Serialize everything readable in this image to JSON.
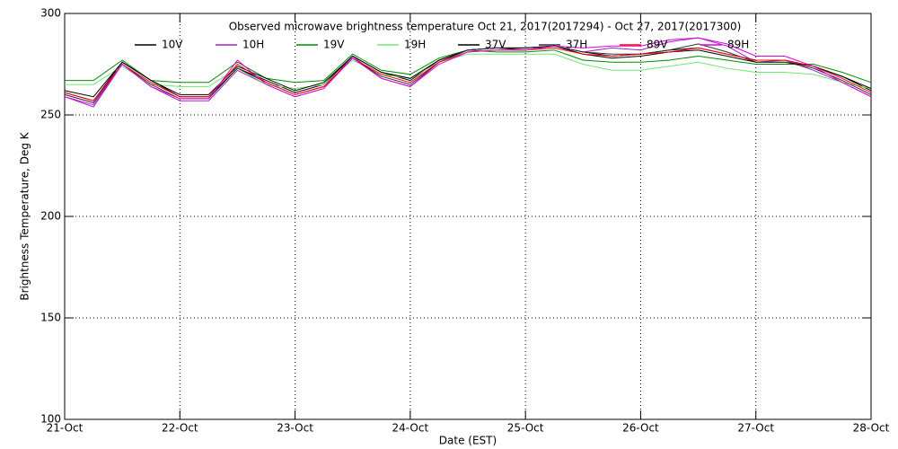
{
  "chart_data": {
    "type": "line",
    "title": "Observed microwave brightness temperature Oct 21, 2017(2017294) - Oct 27, 2017(2017300)",
    "x_label": "Date (EST)",
    "y_label": "Brightness Temperature, Deg K",
    "x": [
      "2017-10-21T00:00",
      "2017-10-21T06:00",
      "2017-10-21T12:00",
      "2017-10-21T18:00",
      "2017-10-22T00:00",
      "2017-10-22T06:00",
      "2017-10-22T12:00",
      "2017-10-22T18:00",
      "2017-10-23T00:00",
      "2017-10-23T06:00",
      "2017-10-23T12:00",
      "2017-10-23T18:00",
      "2017-10-24T00:00",
      "2017-10-24T06:00",
      "2017-10-24T12:00",
      "2017-10-24T18:00",
      "2017-10-25T00:00",
      "2017-10-25T06:00",
      "2017-10-25T12:00",
      "2017-10-25T18:00",
      "2017-10-26T00:00",
      "2017-10-26T06:00",
      "2017-10-26T12:00",
      "2017-10-26T18:00",
      "2017-10-27T00:00",
      "2017-10-27T06:00",
      "2017-10-27T12:00",
      "2017-10-27T18:00",
      "2017-10-28T00:00"
    ],
    "xlim": [
      "2017-10-21",
      "2017-10-28"
    ],
    "xticks": [
      {
        "value": "2017-10-21",
        "label": "21-Oct"
      },
      {
        "value": "2017-10-22",
        "label": "22-Oct"
      },
      {
        "value": "2017-10-23",
        "label": "23-Oct"
      },
      {
        "value": "2017-10-24",
        "label": "24-Oct"
      },
      {
        "value": "2017-10-25",
        "label": "25-Oct"
      },
      {
        "value": "2017-10-26",
        "label": "26-Oct"
      },
      {
        "value": "2017-10-27",
        "label": "27-Oct"
      },
      {
        "value": "2017-10-28",
        "label": "28-Oct"
      }
    ],
    "ylim": [
      100,
      300
    ],
    "yticks": [
      100,
      150,
      200,
      250,
      300
    ],
    "grid": true,
    "series": [
      {
        "name": "10V",
        "color": "#000000",
        "values": [
          261,
          257,
          276,
          267,
          259,
          259,
          273,
          267,
          261,
          265,
          279,
          271,
          267,
          277,
          282,
          283,
          283,
          284,
          281,
          279,
          280,
          282,
          283,
          280,
          277,
          277,
          274,
          269,
          262
        ]
      },
      {
        "name": "10H",
        "color": "#a020c0",
        "values": [
          259,
          254,
          275,
          264,
          257,
          257,
          272,
          265,
          259,
          263,
          279,
          268,
          264,
          276,
          282,
          283,
          282,
          284,
          281,
          283,
          282,
          286,
          288,
          284,
          276,
          277,
          272,
          266,
          259
        ]
      },
      {
        "name": "19V",
        "color": "#008c00",
        "values": [
          267,
          267,
          277,
          267,
          266,
          266,
          276,
          268,
          266,
          267,
          280,
          272,
          270,
          278,
          282,
          281,
          281,
          282,
          277,
          276,
          276,
          277,
          279,
          277,
          275,
          275,
          275,
          271,
          266
        ]
      },
      {
        "name": "19H",
        "color": "#70e870",
        "values": [
          265,
          265,
          274,
          265,
          264,
          264,
          273,
          265,
          263,
          265,
          277,
          270,
          268,
          276,
          280,
          280,
          280,
          280,
          275,
          272,
          272,
          274,
          276,
          273,
          271,
          271,
          270,
          266,
          263
        ]
      },
      {
        "name": "37V",
        "color": "#000000",
        "values": [
          262,
          259,
          276,
          267,
          260,
          260,
          274,
          268,
          262,
          266,
          279,
          271,
          268,
          277,
          282,
          283,
          283,
          284,
          280,
          278,
          279,
          281,
          282,
          279,
          276,
          276,
          274,
          269,
          263
        ]
      },
      {
        "name": "37H",
        "color": "#303030",
        "values": [
          260,
          256,
          275,
          265,
          258,
          258,
          273,
          266,
          260,
          264,
          278,
          269,
          265,
          276,
          282,
          283,
          282,
          284,
          281,
          280,
          280,
          282,
          285,
          281,
          276,
          276,
          273,
          267,
          260
        ]
      },
      {
        "name": "89V",
        "color": "#ff0000",
        "values": [
          261,
          257,
          275,
          266,
          259,
          259,
          275,
          266,
          260,
          264,
          278,
          270,
          266,
          276,
          281,
          282,
          282,
          283,
          280,
          279,
          280,
          281,
          283,
          280,
          277,
          277,
          274,
          268,
          261
        ]
      },
      {
        "name": "89H",
        "color": "#e000e0",
        "values": [
          259,
          255,
          275,
          264,
          258,
          258,
          277,
          265,
          259,
          263,
          278,
          268,
          264,
          275,
          281,
          282,
          282,
          284,
          283,
          284,
          284,
          287,
          288,
          285,
          279,
          279,
          274,
          266,
          259
        ]
      }
    ]
  }
}
